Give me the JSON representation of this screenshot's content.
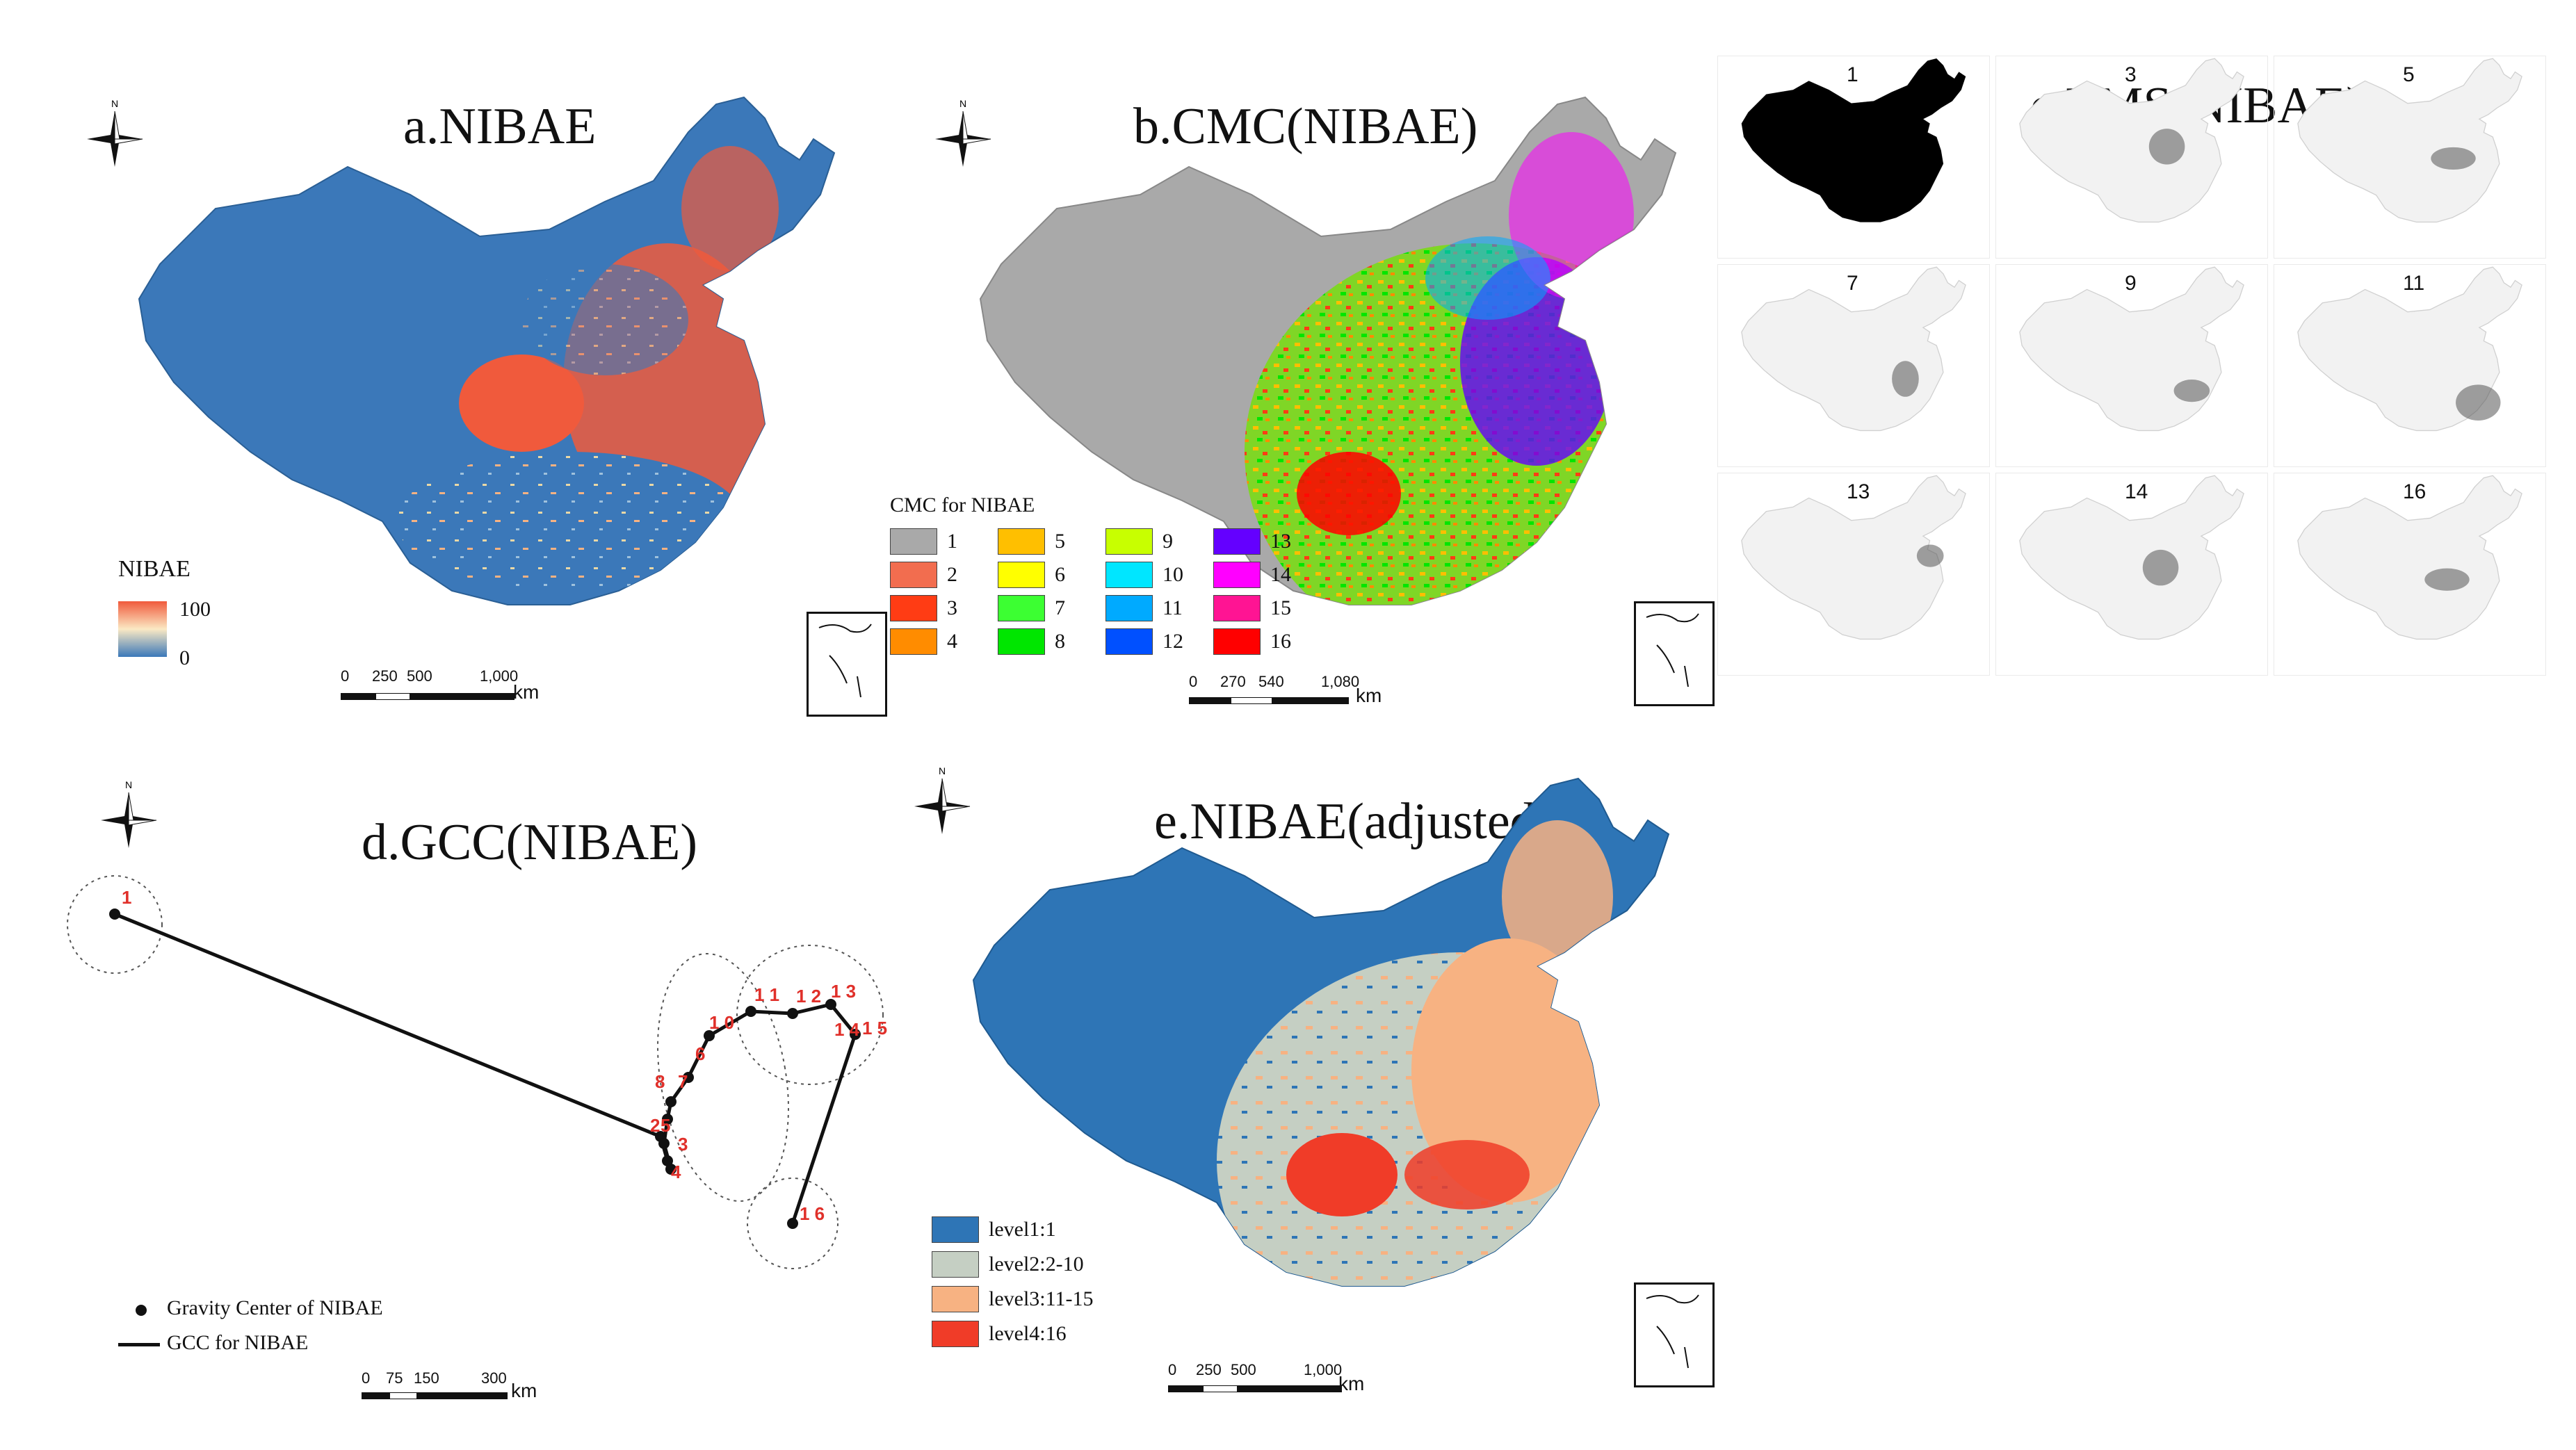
{
  "panels": {
    "a": {
      "title": "a.NIBAE",
      "legend_title": "NIBAE",
      "legend_max": "100",
      "legend_min": "0",
      "scale_labels": [
        "0",
        "250",
        "500",
        "1,000"
      ],
      "scale_unit": "km"
    },
    "b": {
      "title": "b.CMC(NIBAE)",
      "legend_title": "CMC for NIBAE",
      "legend_items": [
        {
          "label": "1",
          "color": "#a9a9a9"
        },
        {
          "label": "2",
          "color": "#f26d4f"
        },
        {
          "label": "3",
          "color": "#ff3c14"
        },
        {
          "label": "4",
          "color": "#ff8c00"
        },
        {
          "label": "5",
          "color": "#ffbf00"
        },
        {
          "label": "6",
          "color": "#ffff00"
        },
        {
          "label": "7",
          "color": "#3cff32"
        },
        {
          "label": "8",
          "color": "#00e600"
        },
        {
          "label": "9",
          "color": "#c8ff00"
        },
        {
          "label": "10",
          "color": "#00e6ff"
        },
        {
          "label": "11",
          "color": "#00aaff"
        },
        {
          "label": "12",
          "color": "#0050ff"
        },
        {
          "label": "13",
          "color": "#6400ff"
        },
        {
          "label": "14",
          "color": "#ff00ff"
        },
        {
          "label": "15",
          "color": "#ff1493"
        },
        {
          "label": "16",
          "color": "#ff0000"
        }
      ],
      "scale_labels": [
        "0",
        "270",
        "540",
        "1,080"
      ],
      "scale_unit": "km"
    },
    "c": {
      "title": "c.TMS(NIBAE)",
      "thumbnails": [
        "1",
        "3",
        "5",
        "7",
        "9",
        "11",
        "13",
        "14",
        "16"
      ]
    },
    "d": {
      "title": "d.GCC(NIBAE)",
      "point_labels": [
        "1",
        "2",
        "5",
        "3",
        "4",
        "6",
        "7",
        "8",
        "1 0",
        "1 1",
        "1 2",
        "1 3",
        "1 4",
        "1 5",
        "1 6"
      ],
      "legend_point": "Gravity Center of NIBAE",
      "legend_line": "GCC for NIBAE",
      "scale_labels": [
        "0",
        "75",
        "150",
        "300"
      ],
      "scale_unit": "km"
    },
    "e": {
      "title": "e.NIBAE(adjusted)",
      "legend_items": [
        {
          "label": "level1:1",
          "color": "#2e75b6"
        },
        {
          "label": "level2:2-10",
          "color": "#c5cfc3"
        },
        {
          "label": "level3:11-15",
          "color": "#f7b282"
        },
        {
          "label": "level4:16",
          "color": "#f03c28"
        }
      ],
      "scale_labels": [
        "0",
        "250",
        "500",
        "1,000"
      ],
      "scale_unit": "km"
    }
  },
  "icons": {
    "north_arrow": "north-arrow-icon",
    "north_letter": "N"
  }
}
